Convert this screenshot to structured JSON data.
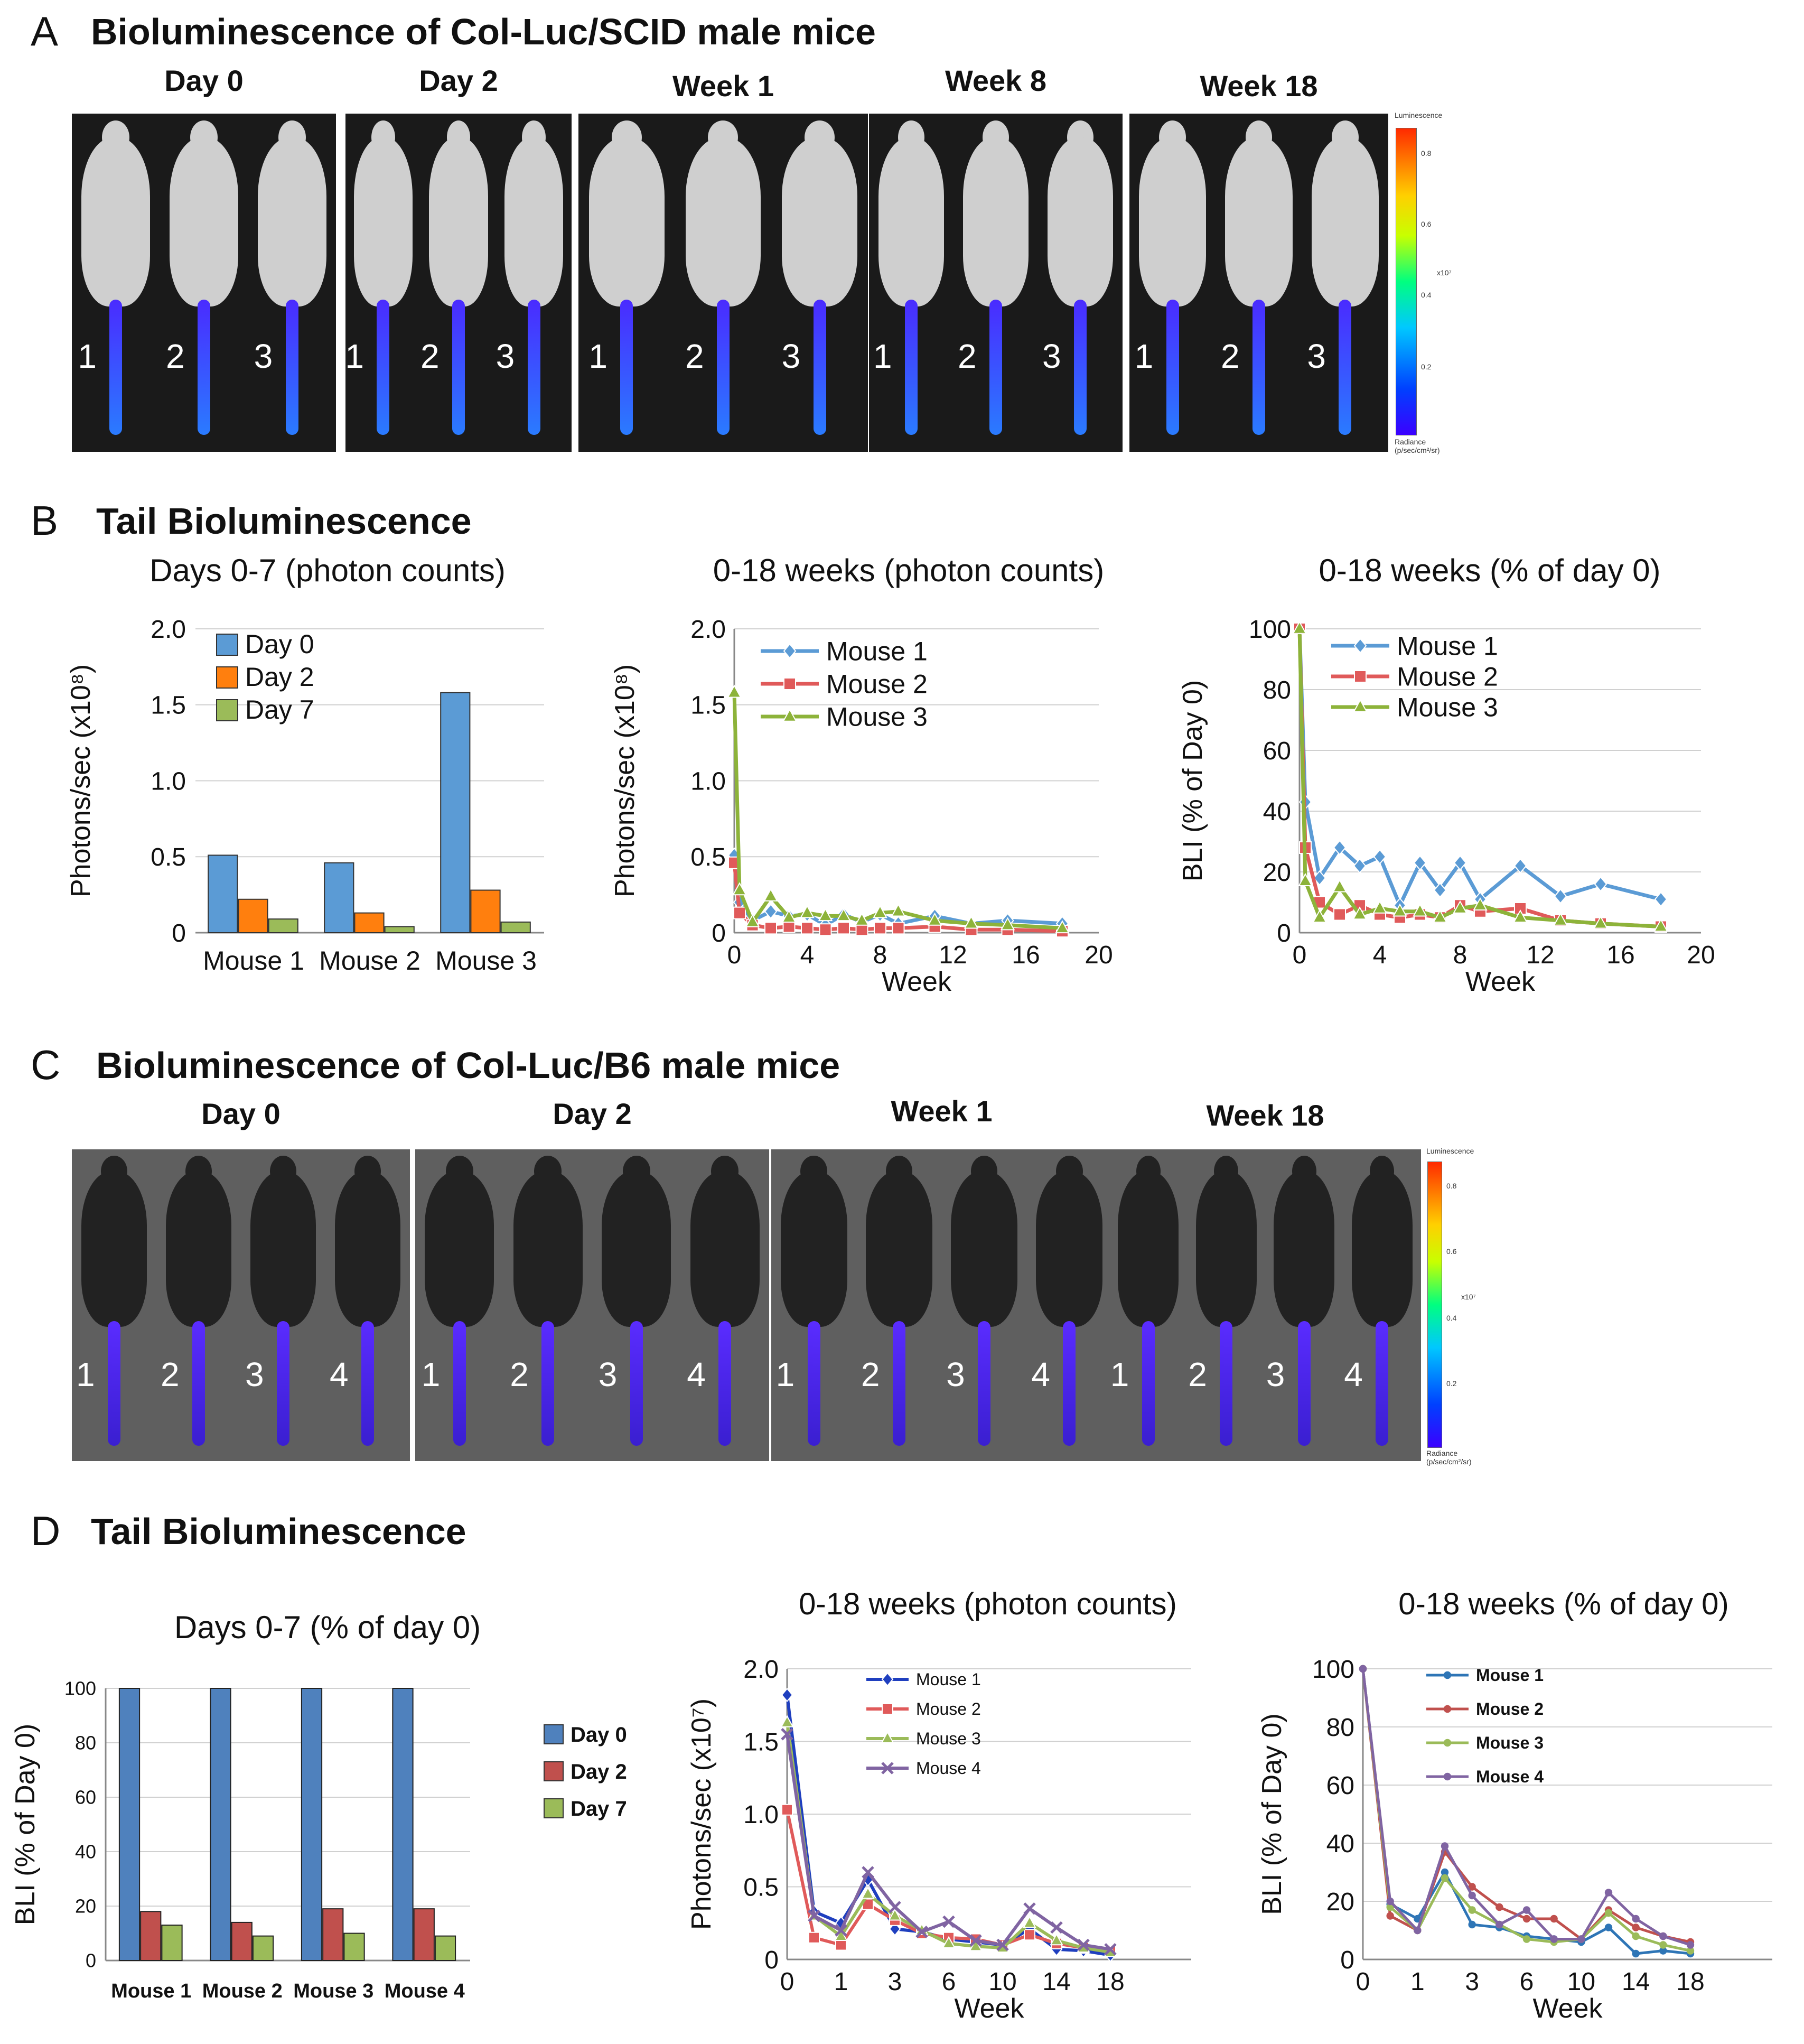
{
  "panelA": {
    "letter": "A",
    "title": "Bioluminescence of Col-Luc/SCID male mice",
    "images": [
      {
        "label": "Day 0",
        "mice": [
          "1",
          "2",
          "3"
        ]
      },
      {
        "label": "Day 2",
        "mice": [
          "1",
          "2",
          "3"
        ]
      },
      {
        "label": "Week 1",
        "mice": [
          "1",
          "2",
          "3"
        ]
      },
      {
        "label": "Week 8",
        "mice": [
          "1",
          "2",
          "3"
        ]
      },
      {
        "label": "Week 18",
        "mice": [
          "1",
          "2",
          "3"
        ]
      }
    ],
    "scale": {
      "title": "Luminescence",
      "ticks": [
        "0.8",
        "0.6",
        "0.4",
        "0.2"
      ],
      "unit": "x10⁷",
      "footer": "Radiance (p/sec/cm²/sr)"
    }
  },
  "panelB": {
    "letter": "B",
    "title": "Tail Bioluminescence"
  },
  "panelC": {
    "letter": "C",
    "title": "Bioluminescence of Col-Luc/B6 male mice",
    "images": [
      {
        "label": "Day 0",
        "mice": [
          "1",
          "2",
          "3",
          "4"
        ]
      },
      {
        "label": "Day 2",
        "mice": [
          "1",
          "2",
          "3",
          "4"
        ]
      },
      {
        "label": "Week 1",
        "mice": [
          "1",
          "2",
          "3",
          "4"
        ]
      },
      {
        "label": "Week 18",
        "mice": [
          "1",
          "2",
          "3",
          "4"
        ]
      }
    ],
    "scale": {
      "title": "Luminescence",
      "ticks": [
        "0.8",
        "0.6",
        "0.4",
        "0.2"
      ],
      "unit": "x10⁷",
      "footer": "Radiance (p/sec/cm²/sr)"
    }
  },
  "panelD": {
    "letter": "D",
    "title": "Tail Bioluminescence"
  },
  "colors": {
    "blue": "#5b9bd5",
    "orange": "#ff7f0e",
    "lightgreen": "#9bbb59",
    "red": "#e05a5a",
    "olive": "#8db33a",
    "dblue": "#4f81bd",
    "dred": "#c0504d",
    "dgreen": "#9bbb59",
    "purple": "#8064a2",
    "navy": "#1f3fbf"
  },
  "chart_data": [
    {
      "id": "B1",
      "type": "bar",
      "title": "Days 0-7",
      "title_suffix": "(photon counts)",
      "ylabel": "Photons/sec (x10⁸)",
      "xlabel": "",
      "ylim": [
        0,
        2.0
      ],
      "yticks": [
        "0",
        "0.5",
        "1.0",
        "1.5",
        "2.0"
      ],
      "ytick_values": [
        0,
        0.5,
        1.0,
        1.5,
        2.0
      ],
      "categories": [
        "Mouse 1",
        "Mouse 2",
        "Mouse 3"
      ],
      "series": [
        {
          "name": "Day 0",
          "color": "#5b9bd5",
          "values": [
            0.51,
            0.46,
            1.58
          ]
        },
        {
          "name": "Day 2",
          "color": "#ff7f0e",
          "values": [
            0.22,
            0.13,
            0.28
          ]
        },
        {
          "name": "Day 7",
          "color": "#9bbb59",
          "values": [
            0.09,
            0.04,
            0.07
          ]
        }
      ],
      "legend": "top-left"
    },
    {
      "id": "B2",
      "type": "line",
      "title": "0-18 weeks (photon counts)",
      "ylabel": "Photons/sec (x10⁸)",
      "xlabel": "Week",
      "xlim": [
        0,
        20
      ],
      "ylim": [
        0,
        2.0
      ],
      "xticks": [
        "0",
        "4",
        "8",
        "12",
        "16",
        "20"
      ],
      "xtick_values": [
        0,
        4,
        8,
        12,
        16,
        20
      ],
      "yticks": [
        "0",
        "0.5",
        "1.0",
        "1.5",
        "2.0"
      ],
      "ytick_values": [
        0,
        0.5,
        1.0,
        1.5,
        2.0
      ],
      "series": [
        {
          "name": "Mouse 1",
          "color": "#5b9bd5",
          "marker": "diamond",
          "x": [
            0,
            0.29,
            1,
            2,
            3,
            4,
            5,
            6,
            7,
            8,
            9,
            11,
            13,
            15,
            18
          ],
          "y": [
            0.51,
            0.2,
            0.08,
            0.14,
            0.11,
            0.12,
            0.05,
            0.12,
            0.07,
            0.12,
            0.06,
            0.11,
            0.06,
            0.08,
            0.06
          ]
        },
        {
          "name": "Mouse 2",
          "color": "#e05a5a",
          "marker": "square",
          "x": [
            0,
            0.29,
            1,
            2,
            3,
            4,
            5,
            6,
            7,
            8,
            9,
            11,
            13,
            15,
            18
          ],
          "y": [
            0.46,
            0.13,
            0.05,
            0.03,
            0.04,
            0.03,
            0.02,
            0.03,
            0.02,
            0.03,
            0.03,
            0.04,
            0.02,
            0.02,
            0.01
          ]
        },
        {
          "name": "Mouse 3",
          "color": "#8db33a",
          "marker": "triangle",
          "x": [
            0,
            0.29,
            1,
            2,
            3,
            4,
            5,
            6,
            7,
            8,
            9,
            11,
            13,
            15,
            18
          ],
          "y": [
            1.58,
            0.28,
            0.07,
            0.24,
            0.1,
            0.13,
            0.11,
            0.11,
            0.08,
            0.13,
            0.14,
            0.08,
            0.06,
            0.05,
            0.03
          ]
        }
      ],
      "legend": "top-left"
    },
    {
      "id": "B3",
      "type": "line",
      "title": "0-18 weeks (% of day 0)",
      "ylabel": "BLI (% of Day 0)",
      "xlabel": "Week",
      "xlim": [
        0,
        20
      ],
      "ylim": [
        0,
        100
      ],
      "xticks": [
        "0",
        "4",
        "8",
        "12",
        "16",
        "20"
      ],
      "xtick_values": [
        0,
        4,
        8,
        12,
        16,
        20
      ],
      "yticks": [
        "0",
        "20",
        "40",
        "60",
        "80",
        "100"
      ],
      "ytick_values": [
        0,
        20,
        40,
        60,
        80,
        100
      ],
      "series": [
        {
          "name": "Mouse 1",
          "color": "#5b9bd5",
          "marker": "diamond",
          "x": [
            0,
            0.29,
            1,
            2,
            3,
            4,
            5,
            6,
            7,
            8,
            9,
            11,
            13,
            15,
            18
          ],
          "y": [
            100,
            43,
            18,
            28,
            22,
            25,
            9,
            23,
            14,
            23,
            11,
            22,
            12,
            16,
            11
          ]
        },
        {
          "name": "Mouse 2",
          "color": "#e05a5a",
          "marker": "square",
          "x": [
            0,
            0.29,
            1,
            2,
            3,
            4,
            5,
            6,
            7,
            8,
            9,
            11,
            13,
            15,
            18
          ],
          "y": [
            100,
            28,
            10,
            6,
            9,
            6,
            5,
            6,
            5,
            9,
            7,
            8,
            4,
            3,
            2
          ]
        },
        {
          "name": "Mouse 3",
          "color": "#8db33a",
          "marker": "triangle",
          "x": [
            0,
            0.29,
            1,
            2,
            3,
            4,
            5,
            6,
            7,
            8,
            9,
            11,
            13,
            15,
            18
          ],
          "y": [
            100,
            17,
            5,
            15,
            6,
            8,
            7,
            7,
            5,
            8,
            9,
            5,
            4,
            3,
            2
          ]
        }
      ],
      "legend": "top-left"
    },
    {
      "id": "D1",
      "type": "bar",
      "title": "Days 0-7 (% of day 0)",
      "ylabel": "BLI (% of Day 0)",
      "xlabel": "",
      "ylim": [
        0,
        100
      ],
      "yticks": [
        "0",
        "20",
        "40",
        "60",
        "80",
        "100"
      ],
      "ytick_values": [
        0,
        20,
        40,
        60,
        80,
        100
      ],
      "categories": [
        "Mouse 1",
        "Mouse 2",
        "Mouse 3",
        "Mouse 4"
      ],
      "series": [
        {
          "name": "Day 0",
          "color": "#4f81bd",
          "values": [
            100,
            100,
            100,
            100
          ]
        },
        {
          "name": "Day 2",
          "color": "#c0504d",
          "values": [
            18,
            14,
            19,
            19
          ]
        },
        {
          "name": "Day 7",
          "color": "#9bbb59",
          "values": [
            13,
            9,
            10,
            9
          ]
        }
      ],
      "legend": "right"
    },
    {
      "id": "D2",
      "type": "line",
      "title": "0-18 weeks (photon counts)",
      "ylabel": "Photons/sec (x10⁷)",
      "xlabel": "Week",
      "xlim": [
        0,
        18
      ],
      "ylim": [
        0,
        2.0
      ],
      "xticks": [
        "0",
        "1",
        "3",
        "6",
        "10",
        "14",
        "18"
      ],
      "xtick_values": [
        0,
        2.4,
        4.8,
        7.2,
        9.6,
        12,
        14.4
      ],
      "yticks": [
        "0",
        "0.5",
        "1.0",
        "1.5",
        "2.0"
      ],
      "ytick_values": [
        0,
        0.5,
        1.0,
        1.5,
        2.0
      ],
      "series": [
        {
          "name": "Mouse 1",
          "color": "#1f3fbf",
          "marker": "diamond",
          "x": [
            0,
            1.2,
            2.4,
            3.6,
            4.8,
            6,
            7.2,
            8.4,
            9.6,
            10.8,
            12,
            13.2,
            14.4
          ],
          "y": [
            1.82,
            0.33,
            0.25,
            0.55,
            0.21,
            0.19,
            0.14,
            0.12,
            0.1,
            0.21,
            0.07,
            0.06,
            0.03
          ]
        },
        {
          "name": "Mouse 2",
          "color": "#e05a5a",
          "marker": "square",
          "x": [
            0,
            1.2,
            2.4,
            3.6,
            4.8,
            6,
            7.2,
            8.4,
            9.6,
            10.8,
            12,
            13.2,
            14.4
          ],
          "y": [
            1.03,
            0.15,
            0.1,
            0.38,
            0.27,
            0.18,
            0.15,
            0.14,
            0.1,
            0.17,
            0.11,
            0.08,
            0.06
          ]
        },
        {
          "name": "Mouse 3",
          "color": "#9bbb59",
          "marker": "triangle",
          "x": [
            0,
            1.2,
            2.4,
            3.6,
            4.8,
            6,
            7.2,
            8.4,
            9.6,
            10.8,
            12,
            13.2,
            14.4
          ],
          "y": [
            1.63,
            0.3,
            0.16,
            0.45,
            0.3,
            0.2,
            0.11,
            0.09,
            0.08,
            0.25,
            0.13,
            0.08,
            0.05
          ]
        },
        {
          "name": "Mouse 4",
          "color": "#8064a2",
          "marker": "x",
          "x": [
            0,
            1.2,
            2.4,
            3.6,
            4.8,
            6,
            7.2,
            8.4,
            9.6,
            10.8,
            12,
            13.2,
            14.4
          ],
          "y": [
            1.55,
            0.3,
            0.2,
            0.6,
            0.36,
            0.19,
            0.26,
            0.13,
            0.1,
            0.35,
            0.22,
            0.1,
            0.07
          ]
        }
      ],
      "legend": "top-left"
    },
    {
      "id": "D3",
      "type": "line",
      "title": "0-18 weeks (% of day 0)",
      "ylabel": "BLI (% of Day 0)",
      "xlabel": "Week",
      "xlim": [
        0,
        18
      ],
      "ylim": [
        0,
        100
      ],
      "xticks": [
        "0",
        "1",
        "3",
        "6",
        "10",
        "14",
        "18"
      ],
      "xtick_values": [
        0,
        2.4,
        4.8,
        7.2,
        9.6,
        12,
        14.4
      ],
      "yticks": [
        "0",
        "20",
        "40",
        "60",
        "80",
        "100"
      ],
      "ytick_values": [
        0,
        20,
        40,
        60,
        80,
        100
      ],
      "series": [
        {
          "name": "Mouse 1",
          "color": "#2e75b6",
          "marker": "dot",
          "x": [
            0,
            1.2,
            2.4,
            3.6,
            4.8,
            6,
            7.2,
            8.4,
            9.6,
            10.8,
            12,
            13.2,
            14.4
          ],
          "y": [
            100,
            19,
            14,
            30,
            12,
            11,
            8,
            7,
            6,
            11,
            2,
            3,
            2
          ]
        },
        {
          "name": "Mouse 2",
          "color": "#c0504d",
          "marker": "dot",
          "x": [
            0,
            1.2,
            2.4,
            3.6,
            4.8,
            6,
            7.2,
            8.4,
            9.6,
            10.8,
            12,
            13.2,
            14.4
          ],
          "y": [
            100,
            15,
            10,
            37,
            25,
            18,
            14,
            14,
            7,
            17,
            11,
            8,
            6
          ]
        },
        {
          "name": "Mouse 3",
          "color": "#9bbb59",
          "marker": "dot",
          "x": [
            0,
            1.2,
            2.4,
            3.6,
            4.8,
            6,
            7.2,
            8.4,
            9.6,
            10.8,
            12,
            13.2,
            14.4
          ],
          "y": [
            100,
            18,
            10,
            28,
            17,
            12,
            7,
            6,
            7,
            16,
            8,
            5,
            3
          ]
        },
        {
          "name": "Mouse 4",
          "color": "#8064a2",
          "marker": "dot",
          "x": [
            0,
            1.2,
            2.4,
            3.6,
            4.8,
            6,
            7.2,
            8.4,
            9.6,
            10.8,
            12,
            13.2,
            14.4
          ],
          "y": [
            100,
            20,
            10,
            39,
            22,
            12,
            17,
            7,
            7,
            23,
            14,
            8,
            5
          ]
        }
      ],
      "legend": "top-left"
    }
  ]
}
